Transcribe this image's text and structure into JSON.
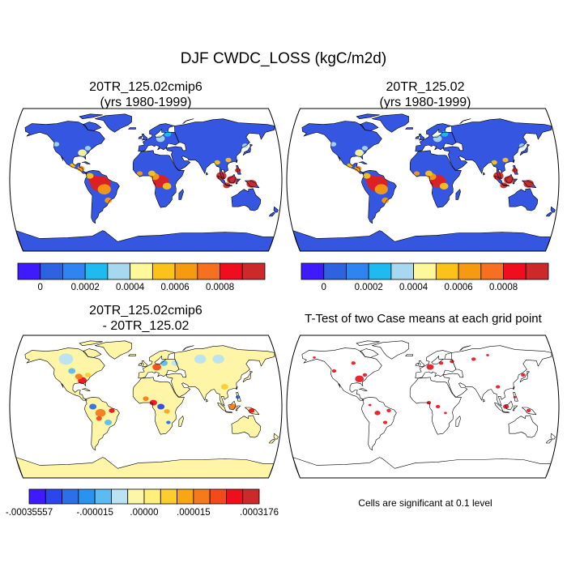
{
  "title": "DJF CWDC_LOSS (kgC/m2d)",
  "panels": [
    {
      "id": "case1",
      "title_line1": "20TR_125.02cmip6",
      "title_line2": "(yrs 1980-1999)"
    },
    {
      "id": "case2",
      "title_line1": "20TR_125.02",
      "title_line2": "(yrs 1980-1999)"
    },
    {
      "id": "diff",
      "title_line1": "20TR_125.02cmip6",
      "title_line2": "- 20TR_125.02"
    },
    {
      "id": "ttest",
      "title_line1": "T-Test of two Case means at each grid point",
      "title_line2": ""
    }
  ],
  "colorbar_top": {
    "colors": [
      "#3f1aff",
      "#2d62e0",
      "#2f84f2",
      "#1fbaf0",
      "#a8d8ef",
      "#fdf99b",
      "#fbc31a",
      "#f69b11",
      "#f57021",
      "#ef0d1f",
      "#cc2a2a"
    ],
    "tick_labels": [
      "0",
      "0.0002",
      "0.0004",
      "0.0006",
      "0.0008"
    ]
  },
  "colorbar_diff": {
    "colors": [
      "#3f1aff",
      "#2b46ea",
      "#2d6fe6",
      "#2a93f0",
      "#5cbcf1",
      "#b9e2f2",
      "#fef6a6",
      "#fef07a",
      "#fbcd2f",
      "#f8a614",
      "#f57a1a",
      "#f24a1a",
      "#ee0e1c",
      "#cc2a2a"
    ],
    "tick_labels": [
      "-.00035557",
      "-.000015",
      ".00000",
      ".000015",
      ".0003176"
    ]
  },
  "ttest_note": "Cells are significant at 0.1 level"
}
